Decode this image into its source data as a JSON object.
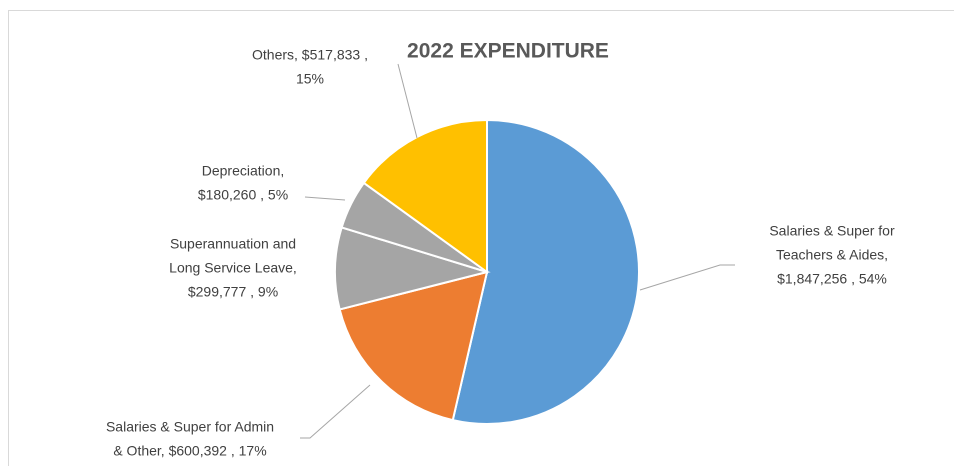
{
  "chart_data": {
    "type": "pie",
    "title": "2022 EXPENDITURE",
    "values": [
      1847256,
      600392,
      299777,
      180260,
      517833
    ],
    "value_labels": [
      [
        "Salaries & Super for",
        "Teachers & Aides,",
        "$1,847,256 , 54%"
      ],
      [
        "Salaries & Super for Admin",
        "& Other,  $600,392 , 17%"
      ],
      [
        "Superannuation  and",
        "Long Service Leave,",
        "$299,777 , 9%"
      ],
      [
        "Depreciation,",
        "$180,260 , 5%"
      ],
      [
        "Others,  $517,833 ,",
        "15%"
      ]
    ],
    "colors": [
      "#5b9bd5",
      "#ed7d31",
      "#a5a5a5",
      "#a5a5a5",
      "#ffc000"
    ]
  }
}
